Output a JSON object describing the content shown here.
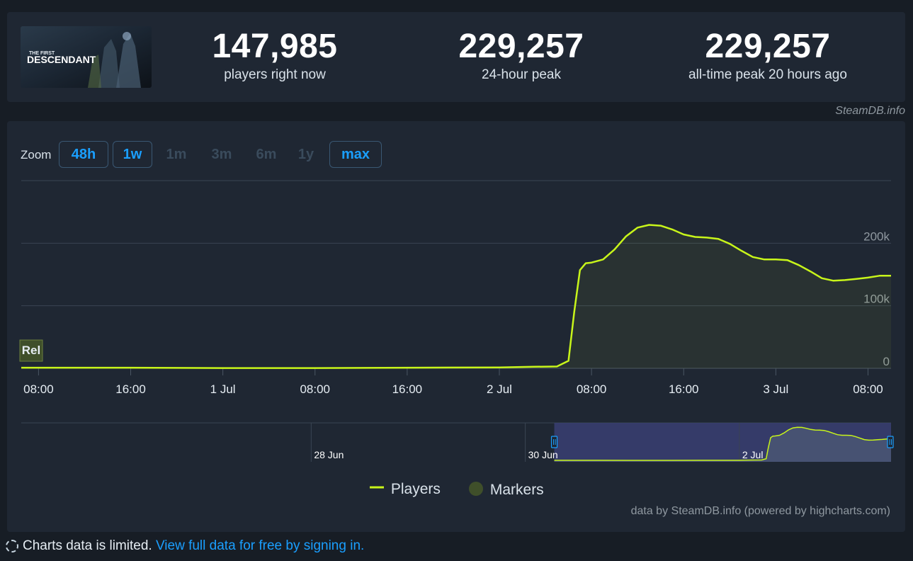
{
  "game": {
    "logo_line1": "THE FIRST",
    "logo_line2": "DESCENDANT"
  },
  "stats": [
    {
      "value": "147,985",
      "label": "players right now"
    },
    {
      "value": "229,257",
      "label": "24-hour peak"
    },
    {
      "value": "229,257",
      "label": "all-time peak 20 hours ago"
    }
  ],
  "credit_top": "SteamDB.info",
  "zoom": {
    "label": "Zoom",
    "buttons": [
      {
        "label": "48h",
        "active": true
      },
      {
        "label": "1w",
        "active": true
      },
      {
        "label": "1m",
        "active": false
      },
      {
        "label": "3m",
        "active": false
      },
      {
        "label": "6m",
        "active": false
      },
      {
        "label": "1y",
        "active": false
      },
      {
        "label": "max",
        "active": true
      }
    ]
  },
  "legend": {
    "players": "Players",
    "markers": "Markers"
  },
  "credit_bottom": "data by SteamDB.info (powered by highcharts.com)",
  "footer": {
    "text": "Charts data is limited.",
    "link": "View full data for free by signing in."
  },
  "colors": {
    "line": "#c8f51a",
    "marker": "#3f4f2a",
    "accent": "#1a9fff",
    "nav_selected": "#3a3f73"
  },
  "chart_data": {
    "type": "line",
    "series": [
      {
        "name": "Players",
        "x": [
          "30 Jun 06:30",
          "30 Jun 16:00",
          "1 Jul 00:00",
          "1 Jul 08:00",
          "1 Jul 16:00",
          "2 Jul 00:00",
          "2 Jul 03:00",
          "2 Jul 05:00",
          "2 Jul 06:00",
          "2 Jul 06:30",
          "2 Jul 07:00",
          "2 Jul 07:30",
          "2 Jul 08:00",
          "2 Jul 09:00",
          "2 Jul 10:00",
          "2 Jul 11:00",
          "2 Jul 12:00",
          "2 Jul 13:00",
          "2 Jul 14:00",
          "2 Jul 15:00",
          "2 Jul 16:00",
          "2 Jul 17:00",
          "2 Jul 18:00",
          "2 Jul 19:00",
          "2 Jul 20:00",
          "2 Jul 21:00",
          "2 Jul 22:00",
          "2 Jul 23:00",
          "3 Jul 00:00",
          "3 Jul 01:00",
          "3 Jul 02:00",
          "3 Jul 03:00",
          "3 Jul 04:00",
          "3 Jul 05:00",
          "3 Jul 06:00",
          "3 Jul 07:00",
          "3 Jul 08:00",
          "3 Jul 09:00",
          "3 Jul 10:00"
        ],
        "values": [
          1000,
          1000,
          500,
          500,
          1000,
          1500,
          2500,
          3000,
          12000,
          90000,
          157000,
          168000,
          169000,
          174000,
          190000,
          211000,
          225000,
          229257,
          228000,
          222000,
          214000,
          210000,
          209000,
          207000,
          199000,
          188000,
          178000,
          174000,
          174000,
          173000,
          165000,
          155000,
          144000,
          140000,
          141000,
          143000,
          145000,
          147985,
          147985
        ]
      }
    ],
    "markers": [
      {
        "x": "30 Jun 06:30",
        "label": "Rel"
      }
    ],
    "x_ticks": [
      "08:00",
      "16:00",
      "1 Jul",
      "08:00",
      "16:00",
      "2 Jul",
      "08:00",
      "16:00",
      "3 Jul",
      "08:00"
    ],
    "y_ticks": [
      "0",
      "100k",
      "200k"
    ],
    "ylim": [
      0,
      300000
    ],
    "navigator": {
      "labels": [
        "28 Jun",
        "30 Jun",
        "2 Jul"
      ],
      "selected_range": [
        "30 Jun 06:30",
        "3 Jul 10:00"
      ]
    }
  }
}
